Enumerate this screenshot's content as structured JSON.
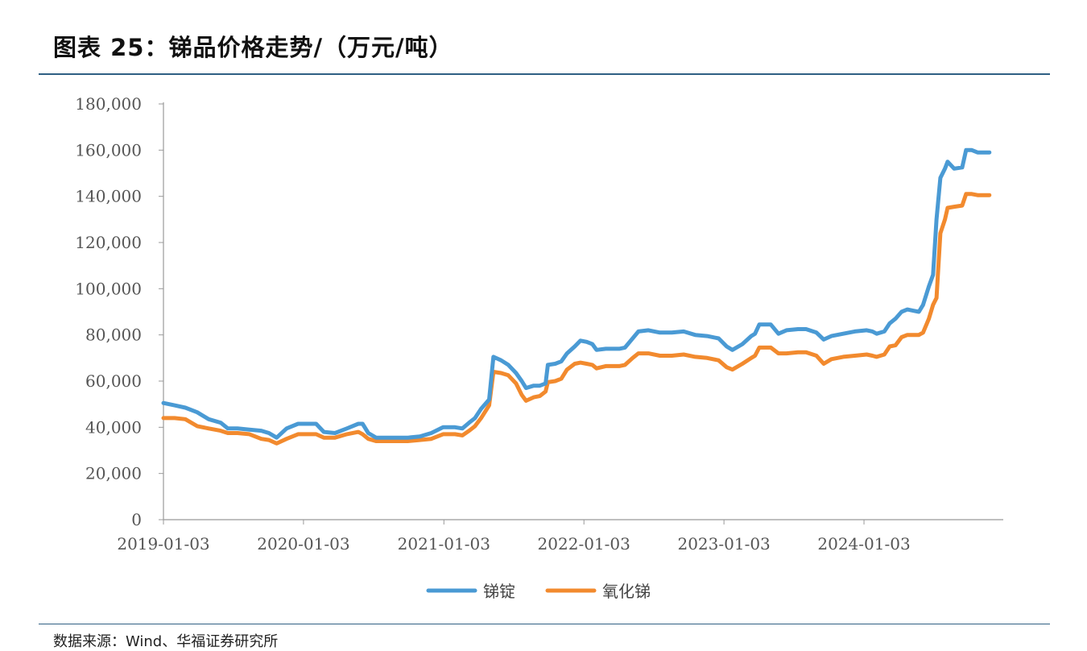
{
  "header": {
    "title": "图表 25：锑品价格走势/（万元/吨）"
  },
  "footer": {
    "source": "数据来源：Wind、华福证券研究所"
  },
  "colors": {
    "series1": "#4a9ad4",
    "series2": "#f28a2e",
    "axis": "#999999",
    "rule": "#2f5f83"
  },
  "chart_data": {
    "type": "line",
    "title": "图表 25：锑品价格走势/（万元/吨）",
    "xlabel": "",
    "ylabel": "",
    "ylim": [
      0,
      180000
    ],
    "yticks": [
      0,
      20000,
      40000,
      60000,
      80000,
      100000,
      120000,
      140000,
      160000,
      180000
    ],
    "ytick_labels": [
      "0",
      "20,000",
      "40,000",
      "60,000",
      "80,000",
      "100,000",
      "120,000",
      "140,000",
      "160,000",
      "180,000"
    ],
    "xlim": [
      "2019-01-03",
      "2024-12-31"
    ],
    "xtick_labels": [
      "2019-01-03",
      "2020-01-03",
      "2021-01-03",
      "2022-01-03",
      "2023-01-03",
      "2024-01-03"
    ],
    "grid": false,
    "legend_position": "bottom",
    "series": [
      {
        "name": "锑锭",
        "points": [
          [
            "2019-01-03",
            50500
          ],
          [
            "2019-02-01",
            49500
          ],
          [
            "2019-03-01",
            48500
          ],
          [
            "2019-04-01",
            46500
          ],
          [
            "2019-05-01",
            43500
          ],
          [
            "2019-06-01",
            42000
          ],
          [
            "2019-06-20",
            39500
          ],
          [
            "2019-07-15",
            39500
          ],
          [
            "2019-08-15",
            39000
          ],
          [
            "2019-09-15",
            38500
          ],
          [
            "2019-10-05",
            37500
          ],
          [
            "2019-10-25",
            35500
          ],
          [
            "2019-11-20",
            39500
          ],
          [
            "2019-12-20",
            41500
          ],
          [
            "2020-01-15",
            41500
          ],
          [
            "2020-02-05",
            41500
          ],
          [
            "2020-02-25",
            38000
          ],
          [
            "2020-03-25",
            37500
          ],
          [
            "2020-04-25",
            39500
          ],
          [
            "2020-05-25",
            41500
          ],
          [
            "2020-06-05",
            41500
          ],
          [
            "2020-06-20",
            37500
          ],
          [
            "2020-07-10",
            35500
          ],
          [
            "2020-08-10",
            35500
          ],
          [
            "2020-10-01",
            35500
          ],
          [
            "2020-11-01",
            36000
          ],
          [
            "2020-12-01",
            37500
          ],
          [
            "2021-01-01",
            40000
          ],
          [
            "2021-02-01",
            40000
          ],
          [
            "2021-02-20",
            39500
          ],
          [
            "2021-03-10",
            42000
          ],
          [
            "2021-03-25",
            44000
          ],
          [
            "2021-04-10",
            48000
          ],
          [
            "2021-05-01",
            52000
          ],
          [
            "2021-05-12",
            70500
          ],
          [
            "2021-06-01",
            69000
          ],
          [
            "2021-06-20",
            67000
          ],
          [
            "2021-07-10",
            63500
          ],
          [
            "2021-07-25",
            60000
          ],
          [
            "2021-08-05",
            57000
          ],
          [
            "2021-08-25",
            58000
          ],
          [
            "2021-09-10",
            58000
          ],
          [
            "2021-09-25",
            59000
          ],
          [
            "2021-10-01",
            67000
          ],
          [
            "2021-10-20",
            67500
          ],
          [
            "2021-11-05",
            68500
          ],
          [
            "2021-11-20",
            72000
          ],
          [
            "2021-12-10",
            75000
          ],
          [
            "2021-12-25",
            77500
          ],
          [
            "2022-01-10",
            77000
          ],
          [
            "2022-01-25",
            76000
          ],
          [
            "2022-02-05",
            73500
          ],
          [
            "2022-03-01",
            74000
          ],
          [
            "2022-04-05",
            74000
          ],
          [
            "2022-04-20",
            74500
          ],
          [
            "2022-05-10",
            78500
          ],
          [
            "2022-05-25",
            81500
          ],
          [
            "2022-06-20",
            82000
          ],
          [
            "2022-07-20",
            81000
          ],
          [
            "2022-08-20",
            81000
          ],
          [
            "2022-09-20",
            81500
          ],
          [
            "2022-10-20",
            80000
          ],
          [
            "2022-11-20",
            79500
          ],
          [
            "2022-12-20",
            78500
          ],
          [
            "2023-01-10",
            75000
          ],
          [
            "2023-01-25",
            73500
          ],
          [
            "2023-02-20",
            76000
          ],
          [
            "2023-03-15",
            79500
          ],
          [
            "2023-03-25",
            80500
          ],
          [
            "2023-04-05",
            84500
          ],
          [
            "2023-05-05",
            84500
          ],
          [
            "2023-05-25",
            80500
          ],
          [
            "2023-06-15",
            82000
          ],
          [
            "2023-07-15",
            82500
          ],
          [
            "2023-08-05",
            82500
          ],
          [
            "2023-09-01",
            81000
          ],
          [
            "2023-09-20",
            78000
          ],
          [
            "2023-10-10",
            79500
          ],
          [
            "2023-11-10",
            80500
          ],
          [
            "2023-12-10",
            81500
          ],
          [
            "2024-01-10",
            82000
          ],
          [
            "2024-01-25",
            81500
          ],
          [
            "2024-02-05",
            80500
          ],
          [
            "2024-02-25",
            81500
          ],
          [
            "2024-03-10",
            85000
          ],
          [
            "2024-03-25",
            87000
          ],
          [
            "2024-04-10",
            90000
          ],
          [
            "2024-04-25",
            91000
          ],
          [
            "2024-05-10",
            90500
          ],
          [
            "2024-05-25",
            90000
          ],
          [
            "2024-06-05",
            93000
          ],
          [
            "2024-06-20",
            101000
          ],
          [
            "2024-07-01",
            106000
          ],
          [
            "2024-07-10",
            130000
          ],
          [
            "2024-07-20",
            148000
          ],
          [
            "2024-08-01",
            152000
          ],
          [
            "2024-08-08",
            155000
          ],
          [
            "2024-08-25",
            152000
          ],
          [
            "2024-09-15",
            152500
          ],
          [
            "2024-09-25",
            160000
          ],
          [
            "2024-10-10",
            160000
          ],
          [
            "2024-10-25",
            159000
          ],
          [
            "2024-11-25",
            159000
          ]
        ]
      },
      {
        "name": "氧化锑",
        "points": [
          [
            "2019-01-03",
            44000
          ],
          [
            "2019-02-01",
            44000
          ],
          [
            "2019-03-01",
            43500
          ],
          [
            "2019-04-01",
            40500
          ],
          [
            "2019-05-01",
            39500
          ],
          [
            "2019-06-01",
            38500
          ],
          [
            "2019-06-20",
            37500
          ],
          [
            "2019-07-15",
            37500
          ],
          [
            "2019-08-15",
            37000
          ],
          [
            "2019-09-15",
            35000
          ],
          [
            "2019-10-05",
            34500
          ],
          [
            "2019-10-25",
            33000
          ],
          [
            "2019-11-20",
            35000
          ],
          [
            "2019-12-20",
            37000
          ],
          [
            "2020-01-15",
            37000
          ],
          [
            "2020-02-05",
            37000
          ],
          [
            "2020-02-25",
            35500
          ],
          [
            "2020-03-25",
            35500
          ],
          [
            "2020-04-25",
            37000
          ],
          [
            "2020-05-25",
            38000
          ],
          [
            "2020-06-05",
            37000
          ],
          [
            "2020-06-20",
            35000
          ],
          [
            "2020-07-10",
            34000
          ],
          [
            "2020-08-10",
            34000
          ],
          [
            "2020-10-01",
            34000
          ],
          [
            "2020-11-01",
            34500
          ],
          [
            "2020-12-01",
            35000
          ],
          [
            "2021-01-01",
            37000
          ],
          [
            "2021-02-01",
            37000
          ],
          [
            "2021-02-20",
            36500
          ],
          [
            "2021-03-10",
            38500
          ],
          [
            "2021-03-25",
            40500
          ],
          [
            "2021-04-10",
            44000
          ],
          [
            "2021-05-01",
            49500
          ],
          [
            "2021-05-12",
            64000
          ],
          [
            "2021-06-01",
            63500
          ],
          [
            "2021-06-20",
            62500
          ],
          [
            "2021-07-10",
            59000
          ],
          [
            "2021-07-25",
            54000
          ],
          [
            "2021-08-05",
            51500
          ],
          [
            "2021-08-25",
            53000
          ],
          [
            "2021-09-10",
            53500
          ],
          [
            "2021-09-25",
            55500
          ],
          [
            "2021-10-01",
            59500
          ],
          [
            "2021-10-20",
            60000
          ],
          [
            "2021-11-05",
            61000
          ],
          [
            "2021-11-20",
            65000
          ],
          [
            "2021-12-10",
            67500
          ],
          [
            "2021-12-25",
            68000
          ],
          [
            "2022-01-10",
            67500
          ],
          [
            "2022-01-25",
            67000
          ],
          [
            "2022-02-05",
            65500
          ],
          [
            "2022-03-01",
            66500
          ],
          [
            "2022-04-05",
            66500
          ],
          [
            "2022-04-20",
            67000
          ],
          [
            "2022-05-10",
            70000
          ],
          [
            "2022-05-25",
            72000
          ],
          [
            "2022-06-20",
            72000
          ],
          [
            "2022-07-20",
            71000
          ],
          [
            "2022-08-20",
            71000
          ],
          [
            "2022-09-20",
            71500
          ],
          [
            "2022-10-20",
            70500
          ],
          [
            "2022-11-20",
            70000
          ],
          [
            "2022-12-20",
            69000
          ],
          [
            "2023-01-10",
            66000
          ],
          [
            "2023-01-25",
            65000
          ],
          [
            "2023-02-20",
            67500
          ],
          [
            "2023-03-15",
            70000
          ],
          [
            "2023-03-25",
            71000
          ],
          [
            "2023-04-05",
            74500
          ],
          [
            "2023-05-05",
            74500
          ],
          [
            "2023-05-25",
            72000
          ],
          [
            "2023-06-15",
            72000
          ],
          [
            "2023-07-15",
            72500
          ],
          [
            "2023-08-05",
            72500
          ],
          [
            "2023-09-01",
            71000
          ],
          [
            "2023-09-20",
            67500
          ],
          [
            "2023-10-10",
            69500
          ],
          [
            "2023-11-10",
            70500
          ],
          [
            "2023-12-10",
            71000
          ],
          [
            "2024-01-10",
            71500
          ],
          [
            "2024-01-25",
            71000
          ],
          [
            "2024-02-05",
            70500
          ],
          [
            "2024-02-25",
            71500
          ],
          [
            "2024-03-10",
            75000
          ],
          [
            "2024-03-25",
            75500
          ],
          [
            "2024-04-10",
            79000
          ],
          [
            "2024-04-25",
            80000
          ],
          [
            "2024-05-10",
            80000
          ],
          [
            "2024-05-25",
            80000
          ],
          [
            "2024-06-05",
            81000
          ],
          [
            "2024-06-20",
            87000
          ],
          [
            "2024-07-01",
            93000
          ],
          [
            "2024-07-10",
            96000
          ],
          [
            "2024-07-20",
            124000
          ],
          [
            "2024-08-01",
            130000
          ],
          [
            "2024-08-08",
            135000
          ],
          [
            "2024-08-25",
            135500
          ],
          [
            "2024-09-15",
            136000
          ],
          [
            "2024-09-25",
            141000
          ],
          [
            "2024-10-10",
            141000
          ],
          [
            "2024-10-25",
            140500
          ],
          [
            "2024-11-25",
            140500
          ]
        ]
      }
    ]
  }
}
